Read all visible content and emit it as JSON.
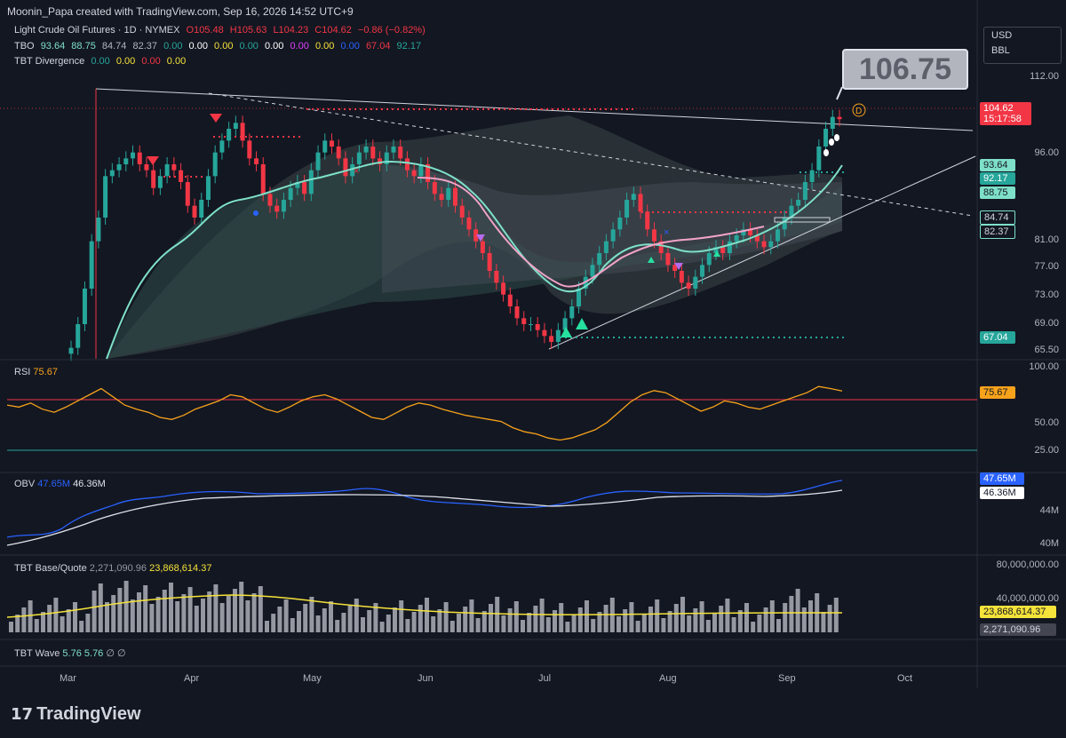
{
  "header": {
    "attribution": "Moonin_Papa created with TradingView.com, Sep 16, 2026 14:52 UTC+9"
  },
  "symbol": {
    "name": "Light Crude Oil Futures · 1D · NYMEX",
    "open": "O105.48",
    "high": "H105.63",
    "low": "L104.23",
    "close": "C104.62",
    "change": "−0.86 (−0.82%)"
  },
  "tbo": {
    "label": "TBO",
    "values": [
      "93.64",
      "88.75",
      "84.74",
      "82.37",
      "0.00",
      "0.00",
      "0.00",
      "0.00",
      "0.00",
      "0.00",
      "0.00",
      "0.00",
      "67.04",
      "92.17"
    ]
  },
  "tbt_divergence": {
    "label": "TBT Divergence",
    "values": [
      "0.00",
      "0.00",
      "0.00",
      "0.00"
    ]
  },
  "currency": {
    "unit": "USD",
    "qty": "BBL"
  },
  "price_bubble": "106.75",
  "price_axis": {
    "ticks": [
      "112.00",
      "96.00",
      "81.00",
      "77.00",
      "73.00",
      "69.00",
      "65.50"
    ]
  },
  "price_tags": {
    "last": "104.62",
    "countdown": "15:17:58",
    "t1": "93.64",
    "t2": "92.17",
    "t3": "88.75",
    "t4": "84.74",
    "t5": "82.37",
    "t6": "67.04"
  },
  "rsi": {
    "label": "RSI",
    "value": "75.67",
    "ticks": [
      "100.00",
      "50.00",
      "25.00"
    ],
    "tag": "75.67"
  },
  "obv": {
    "label": "OBV",
    "v1": "47.65M",
    "v2": "46.36M",
    "ticks": [
      "44M",
      "40M"
    ],
    "tag1": "47.65M",
    "tag2": "46.36M"
  },
  "tbt_bq": {
    "label": "TBT Base/Quote",
    "v1": "2,271,090.96",
    "v2": "23,868,614.37",
    "ticks": [
      "80,000,000.00",
      "40,000,000.00"
    ],
    "tag1": "23,868,614.37",
    "tag2": "2,271,090.96"
  },
  "tbt_wave": {
    "label": "TBT Wave",
    "values": [
      "5.76",
      "5.76",
      "∅",
      "∅"
    ]
  },
  "xaxis": {
    "labels": [
      "Mar",
      "Apr",
      "May",
      "Jun",
      "Jul",
      "Aug",
      "Sep",
      "Oct"
    ]
  },
  "brand": "TradingView",
  "colors": {
    "bg": "#131722",
    "up": "#26a69a",
    "down": "#f23645",
    "teal": "#7ee0c8",
    "pink": "#f2a3c8",
    "rsi": "#f7a21b",
    "obv": "#2962ff",
    "yellow": "#f5e23a"
  },
  "chart_data": {
    "type": "candlestick",
    "title": "Light Crude Oil Futures · 1D · NYMEX",
    "x_range": [
      "Mar",
      "Oct"
    ],
    "ylim": [
      65.5,
      112
    ],
    "ohlc_last": {
      "open": 105.48,
      "high": 105.63,
      "low": 104.23,
      "close": 104.62
    },
    "closes": [
      66,
      70,
      76,
      84,
      88,
      95,
      96,
      97,
      98,
      99,
      97,
      96,
      93,
      95,
      97,
      96,
      94,
      90,
      88,
      91,
      95,
      99,
      101,
      103,
      104,
      101,
      98,
      97,
      92,
      90,
      89,
      91,
      93,
      94,
      92,
      96,
      99,
      101,
      100,
      98,
      95,
      97,
      99,
      100,
      98,
      97,
      99,
      100,
      98,
      96,
      95,
      97,
      94,
      92,
      91,
      93,
      90,
      88,
      86,
      84,
      82,
      79,
      77,
      75,
      73,
      71,
      70,
      70,
      69,
      68,
      67,
      69,
      71,
      73,
      76,
      78,
      80,
      82,
      84,
      86,
      88,
      91,
      92,
      89,
      86,
      84,
      82,
      80,
      79,
      77,
      76,
      78,
      80,
      82,
      83,
      82,
      84,
      85,
      86,
      85,
      84,
      83,
      84,
      86,
      88,
      90,
      91,
      94,
      96,
      100,
      103,
      105,
      104.62
    ],
    "series": [
      {
        "name": "TBO",
        "values": [
          93.64,
          88.75,
          84.74,
          82.37,
          67.04,
          92.17
        ]
      }
    ],
    "rsi": {
      "last": 75.67,
      "ylim": [
        0,
        100
      ],
      "levels": [
        70,
        30
      ],
      "values": [
        62,
        60,
        64,
        58,
        55,
        60,
        66,
        72,
        78,
        70,
        62,
        58,
        55,
        50,
        48,
        52,
        58,
        62,
        66,
        72,
        70,
        64,
        58,
        55,
        60,
        66,
        70,
        72,
        68,
        62,
        56,
        50,
        48,
        54,
        60,
        64,
        62,
        58,
        55,
        52,
        50,
        48,
        46,
        40,
        36,
        34,
        30,
        28,
        30,
        34,
        38,
        45,
        55,
        65,
        72,
        76,
        74,
        68,
        62,
        56,
        60,
        66,
        64,
        60,
        58,
        62,
        66,
        70,
        74,
        80,
        78,
        75.67
      ]
    },
    "obv": {
      "last": [
        47.65,
        46.36
      ],
      "unit": "M"
    },
    "base_quote": {
      "last": [
        2271090.96,
        23868614.37
      ]
    }
  }
}
